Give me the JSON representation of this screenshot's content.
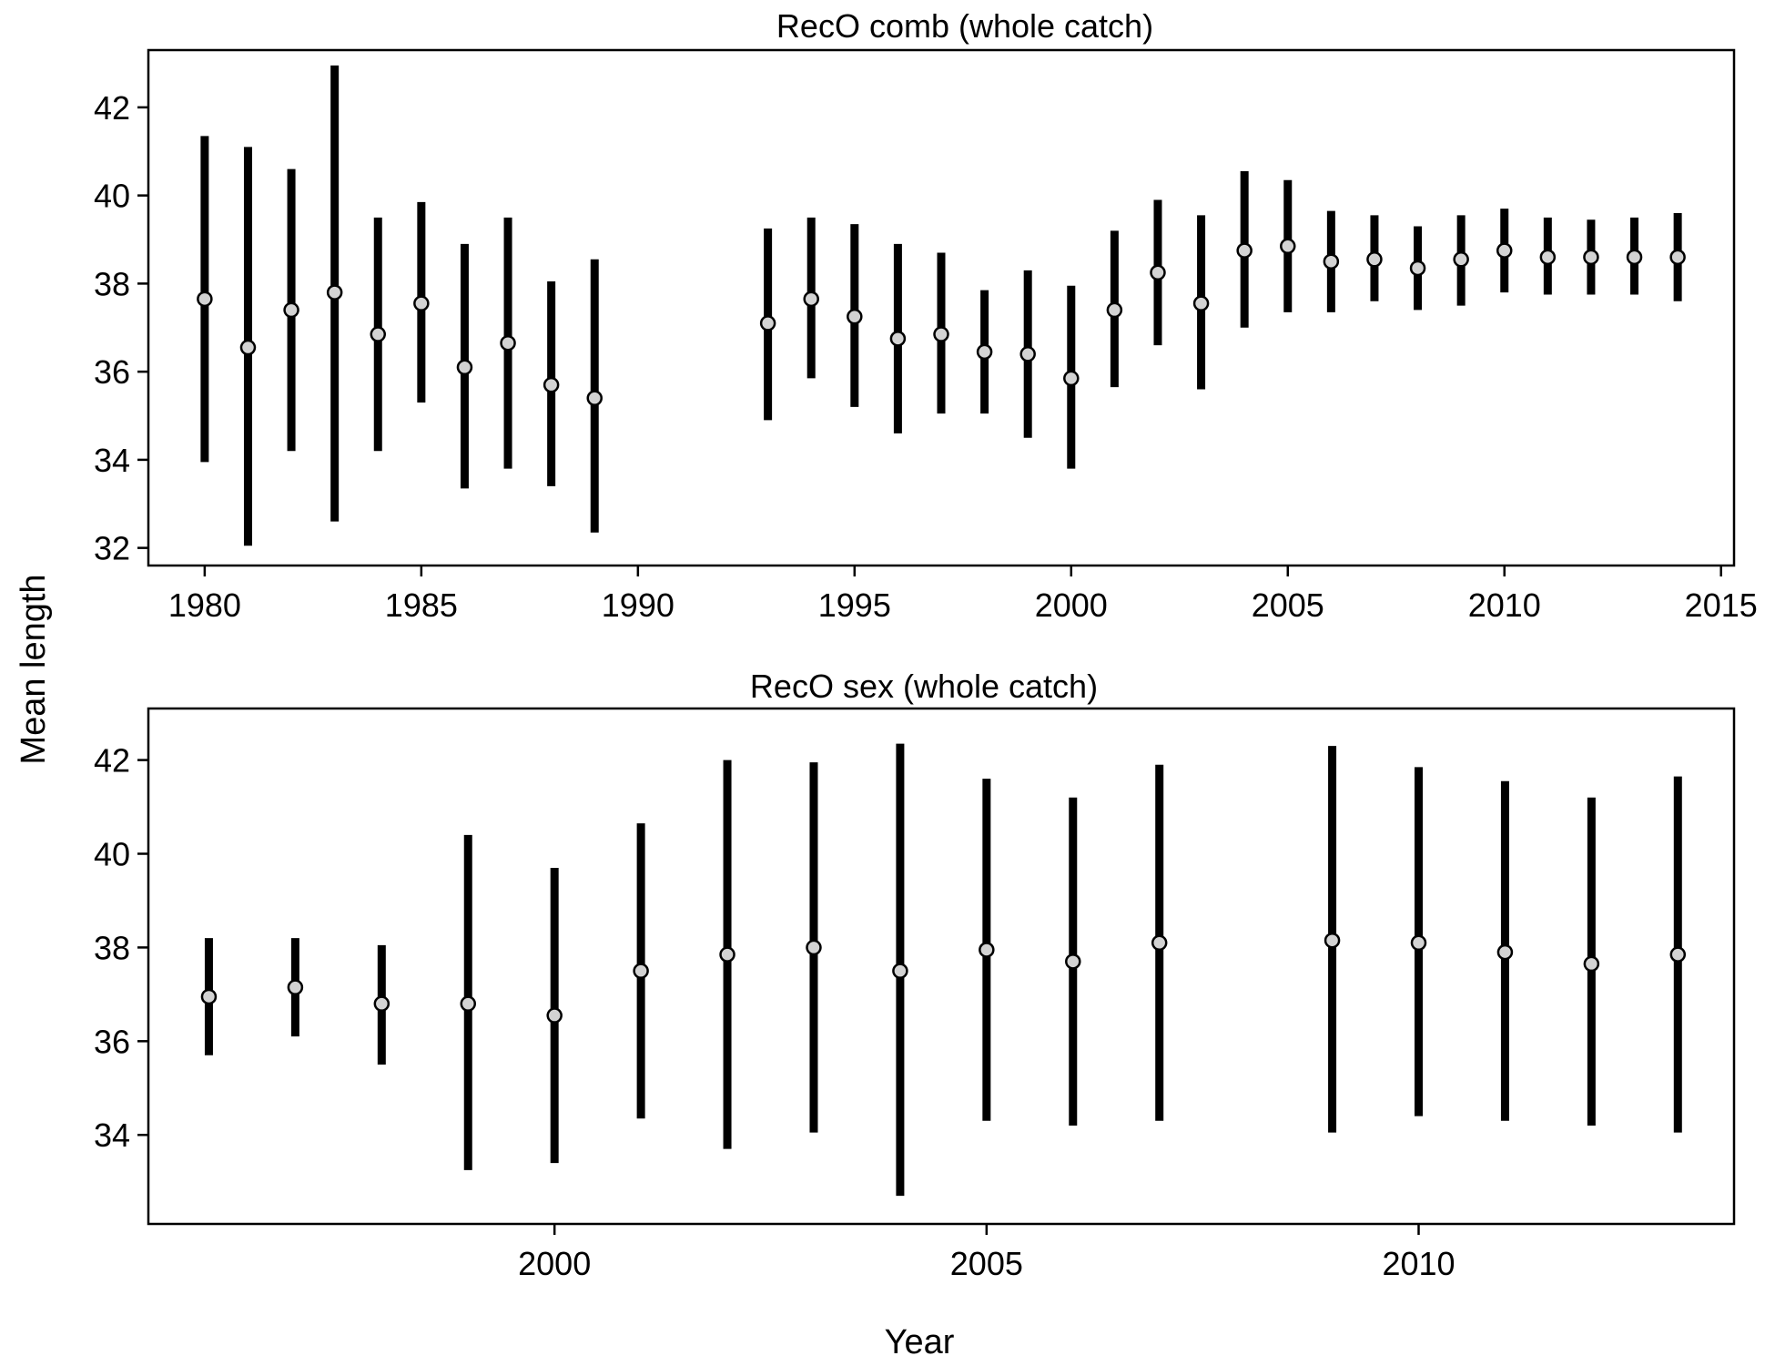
{
  "figure": {
    "ylabel": "Mean length",
    "xlabel": "Year"
  },
  "chart_data": [
    {
      "type": "errorbar",
      "title": "RecO comb (whole catch)",
      "xlim": [
        1978.7,
        2015.3
      ],
      "ylim": [
        31.6,
        43.3
      ],
      "xticks": [
        1980,
        1985,
        1990,
        1995,
        2000,
        2005,
        2010,
        2015
      ],
      "yticks": [
        32,
        34,
        36,
        38,
        40,
        42
      ],
      "series": [
        {
          "x": [
            1980,
            1981,
            1982,
            1983,
            1984,
            1985,
            1986,
            1987,
            1988,
            1989,
            1993,
            1994,
            1995,
            1996,
            1997,
            1998,
            1999,
            2000,
            2001,
            2002,
            2003,
            2004,
            2005,
            2006,
            2007,
            2008,
            2009,
            2010,
            2011,
            2012,
            2013,
            2014
          ],
          "y": [
            37.65,
            36.55,
            37.4,
            37.8,
            36.85,
            37.55,
            36.1,
            36.65,
            35.7,
            35.4,
            37.1,
            37.65,
            37.25,
            36.75,
            36.85,
            36.45,
            36.4,
            35.85,
            37.4,
            38.25,
            37.55,
            38.75,
            38.85,
            38.5,
            38.55,
            38.35,
            38.55,
            38.75,
            38.6,
            38.6,
            38.6,
            38.6
          ],
          "lower": [
            33.95,
            32.05,
            34.2,
            32.6,
            34.2,
            35.3,
            33.35,
            33.8,
            33.4,
            32.35,
            34.9,
            35.85,
            35.2,
            34.6,
            35.05,
            35.05,
            34.5,
            33.8,
            35.65,
            36.6,
            35.6,
            37.0,
            37.35,
            37.35,
            37.6,
            37.4,
            37.5,
            37.8,
            37.75,
            37.75,
            37.75,
            37.6
          ],
          "upper": [
            41.35,
            41.1,
            40.6,
            42.95,
            39.5,
            39.85,
            38.9,
            39.5,
            38.05,
            38.55,
            39.25,
            39.5,
            39.35,
            38.9,
            38.7,
            37.85,
            38.3,
            37.95,
            39.2,
            39.9,
            39.55,
            40.55,
            40.35,
            39.65,
            39.55,
            39.3,
            39.55,
            39.7,
            39.5,
            39.45,
            39.5,
            39.6
          ]
        }
      ]
    },
    {
      "type": "errorbar",
      "title": "RecO sex (whole catch)",
      "xlim": [
        1995.3,
        2013.65
      ],
      "ylim": [
        32.1,
        43.1
      ],
      "xticks": [
        2000,
        2005,
        2010
      ],
      "yticks": [
        34,
        36,
        38,
        40,
        42
      ],
      "series": [
        {
          "x": [
            1996,
            1997,
            1998,
            1999,
            2000,
            2001,
            2002,
            2003,
            2004,
            2005,
            2006,
            2007,
            2009,
            2010,
            2011,
            2012,
            2013
          ],
          "y": [
            36.95,
            37.15,
            36.8,
            36.8,
            36.55,
            37.5,
            37.85,
            38.0,
            37.5,
            37.95,
            37.7,
            38.1,
            38.15,
            38.1,
            37.9,
            37.65,
            37.85
          ],
          "lower": [
            35.7,
            36.1,
            35.5,
            33.25,
            33.4,
            34.35,
            33.7,
            34.05,
            32.7,
            34.3,
            34.2,
            34.3,
            34.05,
            34.4,
            34.3,
            34.2,
            34.05
          ],
          "upper": [
            38.2,
            38.2,
            38.05,
            40.4,
            39.7,
            40.65,
            42.0,
            41.95,
            42.35,
            41.6,
            41.2,
            41.9,
            42.3,
            41.85,
            41.55,
            41.2,
            41.65
          ]
        }
      ]
    }
  ]
}
